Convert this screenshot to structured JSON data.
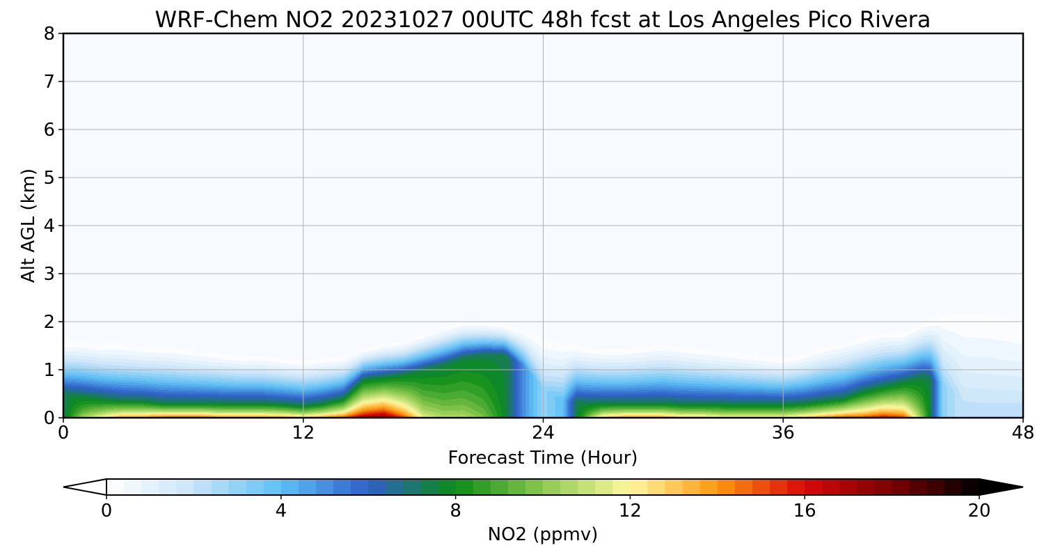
{
  "chart_data": {
    "type": "heatmap",
    "title": "WRF-Chem NO2  20231027 00UTC 48h fcst at Los Angeles Pico Rivera",
    "xlabel": "Forecast Time (Hour)",
    "ylabel": "Alt AGL (km)",
    "xlim": [
      0,
      48
    ],
    "ylim": [
      0,
      8
    ],
    "xticks": [
      0,
      12,
      24,
      36,
      48
    ],
    "yticks": [
      0,
      1,
      2,
      3,
      4,
      5,
      6,
      7,
      8
    ],
    "grid": true,
    "colorbar": {
      "label": "NO2  (ppmv)",
      "min": 0,
      "max": 20,
      "ticks": [
        0,
        4,
        8,
        12,
        16,
        20
      ],
      "extend": "both",
      "orientation": "horizontal",
      "colors": [
        "#ffffff",
        "#c8e4f8",
        "#5ec0f6",
        "#2f5fc8",
        "#0a8c16",
        "#8cc850",
        "#fff8a0",
        "#ff9810",
        "#d80808",
        "#780000",
        "#000000"
      ]
    },
    "profile_hours": [
      0,
      1,
      2,
      3,
      4,
      5,
      6,
      7,
      8,
      9,
      10,
      11,
      12,
      13,
      14,
      15,
      16,
      17,
      18,
      19,
      20,
      21,
      22,
      23,
      24,
      25,
      26,
      27,
      28,
      29,
      30,
      31,
      32,
      33,
      34,
      35,
      36,
      37,
      38,
      39,
      40,
      41,
      42,
      43,
      44,
      45,
      46,
      47,
      48
    ],
    "surface_no2_ppmv": [
      7,
      11,
      13,
      15,
      15,
      16,
      16,
      16,
      15,
      15,
      15,
      15,
      14,
      15,
      16,
      18,
      19,
      16,
      12,
      11,
      11,
      10,
      8,
      5,
      3,
      4,
      9,
      14,
      15,
      15,
      15,
      14,
      14,
      13,
      13,
      13,
      13,
      14,
      15,
      16,
      16,
      17,
      16,
      10,
      3,
      2,
      2,
      2,
      2
    ],
    "column_top_km": [
      1.6,
      1.6,
      1.55,
      1.55,
      1.5,
      1.5,
      1.45,
      1.4,
      1.35,
      1.3,
      1.3,
      1.25,
      1.2,
      1.25,
      1.3,
      1.45,
      1.55,
      1.6,
      1.75,
      1.9,
      2.0,
      2.0,
      1.95,
      1.85,
      1.7,
      1.6,
      1.5,
      1.45,
      1.45,
      1.5,
      1.55,
      1.5,
      1.45,
      1.4,
      1.35,
      1.3,
      1.25,
      1.35,
      1.5,
      1.6,
      1.7,
      1.8,
      1.8,
      2.0,
      2.2,
      2.3,
      2.3,
      2.2,
      2.1
    ],
    "mixed_layer_km": [
      0.5,
      0.45,
      0.4,
      0.35,
      0.35,
      0.3,
      0.3,
      0.3,
      0.3,
      0.3,
      0.3,
      0.28,
      0.25,
      0.3,
      0.4,
      0.8,
      0.85,
      0.9,
      1.0,
      1.1,
      1.25,
      1.3,
      1.3,
      1.1,
      0.6,
      0.35,
      0.3,
      0.3,
      0.3,
      0.3,
      0.3,
      0.28,
      0.28,
      0.28,
      0.28,
      0.28,
      0.28,
      0.3,
      0.35,
      0.4,
      0.55,
      0.65,
      0.75,
      0.85,
      0.7,
      0.35,
      0.3,
      0.3,
      0.3
    ]
  }
}
